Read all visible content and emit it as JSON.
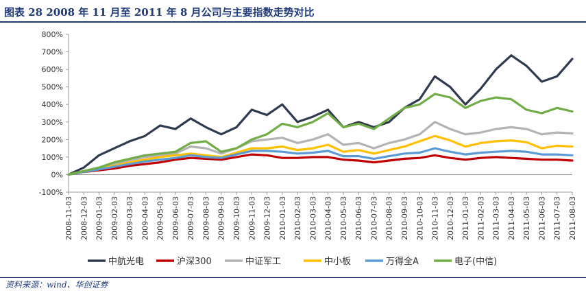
{
  "title": "图表 28   2008 年 11 月至 2011 年 8 月公司与主要指数走势对比",
  "source": "资料来源：wind、华创证券",
  "chart_data": {
    "type": "line",
    "title": "2008 年 11 月至 2011 年 8 月公司与主要指数走势对比",
    "xlabel": "",
    "ylabel": "",
    "ylim": [
      -100,
      800
    ],
    "yticks": [
      -100,
      0,
      100,
      200,
      300,
      400,
      500,
      600,
      700,
      800
    ],
    "ytick_labels": [
      "-100%",
      "0%",
      "100%",
      "200%",
      "300%",
      "400%",
      "500%",
      "600%",
      "700%",
      "800%"
    ],
    "categories": [
      "2008-11-03",
      "2008-12-03",
      "2009-01-03",
      "2009-02-03",
      "2009-03-03",
      "2009-04-03",
      "2009-05-03",
      "2009-06-03",
      "2009-07-03",
      "2009-08-03",
      "2009-09-03",
      "2009-10-03",
      "2009-11-03",
      "2009-12-03",
      "2010-01-03",
      "2010-02-03",
      "2010-03-03",
      "2010-04-03",
      "2010-05-03",
      "2010-06-03",
      "2010-07-03",
      "2010-08-03",
      "2010-09-03",
      "2010-10-03",
      "2010-11-03",
      "2010-12-03",
      "2011-01-03",
      "2011-02-03",
      "2011-03-03",
      "2011-04-03",
      "2011-05-03",
      "2011-06-03",
      "2011-07-03",
      "2011-08-03"
    ],
    "legend_position": "bottom",
    "series": [
      {
        "name": "中航光电",
        "color": "#2f3a4f",
        "values": [
          0,
          40,
          110,
          150,
          190,
          220,
          280,
          260,
          320,
          270,
          230,
          270,
          370,
          340,
          400,
          300,
          330,
          370,
          270,
          300,
          270,
          300,
          380,
          430,
          560,
          500,
          400,
          490,
          600,
          680,
          620,
          530,
          560,
          660
        ]
      },
      {
        "name": "沪深300",
        "color": "#c00000",
        "values": [
          0,
          15,
          25,
          35,
          50,
          60,
          70,
          85,
          95,
          90,
          85,
          100,
          115,
          110,
          95,
          95,
          100,
          100,
          85,
          80,
          70,
          80,
          90,
          95,
          110,
          95,
          85,
          95,
          100,
          95,
          90,
          85,
          85,
          80
        ]
      },
      {
        "name": "中证军工",
        "color": "#b3b3b3",
        "values": [
          0,
          20,
          40,
          60,
          80,
          100,
          110,
          120,
          160,
          150,
          120,
          150,
          190,
          200,
          210,
          180,
          200,
          230,
          170,
          180,
          150,
          180,
          200,
          230,
          300,
          260,
          230,
          240,
          260,
          270,
          260,
          230,
          240,
          235
        ]
      },
      {
        "name": "中小板",
        "color": "#ffc000",
        "values": [
          0,
          20,
          35,
          50,
          70,
          85,
          100,
          110,
          120,
          110,
          100,
          125,
          150,
          150,
          160,
          140,
          150,
          170,
          130,
          140,
          120,
          140,
          160,
          190,
          220,
          195,
          160,
          180,
          190,
          195,
          185,
          150,
          165,
          160
        ]
      },
      {
        "name": "万得全A",
        "color": "#5b9bd5",
        "values": [
          0,
          15,
          30,
          45,
          60,
          75,
          85,
          95,
          110,
          100,
          95,
          115,
          135,
          135,
          130,
          120,
          125,
          135,
          105,
          105,
          90,
          105,
          120,
          125,
          150,
          130,
          115,
          125,
          130,
          135,
          130,
          115,
          115,
          110
        ]
      },
      {
        "name": "电子(中信)",
        "color": "#70ad47",
        "values": [
          0,
          20,
          40,
          70,
          90,
          110,
          120,
          130,
          180,
          190,
          130,
          150,
          200,
          230,
          290,
          270,
          300,
          350,
          270,
          290,
          260,
          320,
          380,
          400,
          460,
          440,
          380,
          420,
          440,
          430,
          370,
          350,
          380,
          360
        ]
      }
    ]
  }
}
